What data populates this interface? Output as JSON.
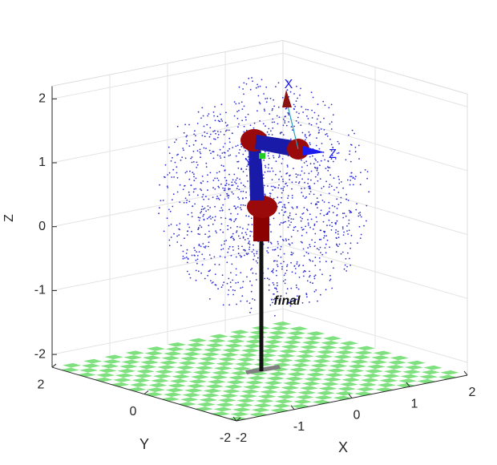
{
  "chart_data": {
    "type": "scatter3d",
    "xlabel": "X",
    "ylabel": "Y",
    "zlabel": "Z",
    "xlim": [
      -2,
      2
    ],
    "ylim": [
      -2,
      2
    ],
    "zlim": [
      -2.2,
      2.2
    ],
    "xticks": [
      -2,
      -1,
      0,
      1,
      2
    ],
    "yticks": [
      -2,
      0,
      2
    ],
    "zticks": [
      -2,
      -1,
      0,
      1,
      2
    ],
    "grid": true,
    "annotations": [
      {
        "text": "final"
      },
      {
        "text": "X"
      },
      {
        "text": "Z"
      },
      {
        "text": "Y"
      }
    ]
  }
}
